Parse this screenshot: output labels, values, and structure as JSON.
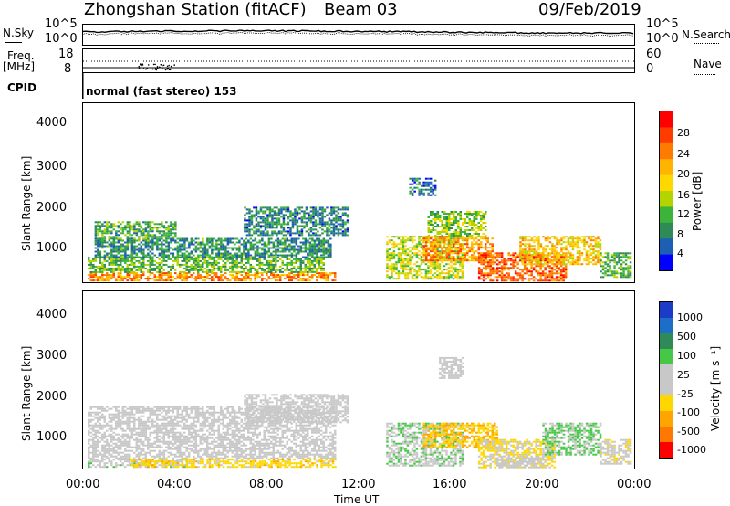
{
  "header": {
    "title": "Zhongshan Station (fitACF)",
    "beam": "Beam 03",
    "date": "09/Feb/2019"
  },
  "noise_panel": {
    "left_label": "N.Sky",
    "right_label": "N.Search",
    "left_ticks": [
      "10^5",
      "10^0"
    ],
    "right_ticks": [
      "10^5",
      "10^0"
    ]
  },
  "freq_panel": {
    "left_label": "Freq.",
    "left_unit": "[MHz]",
    "right_label": "Nave",
    "left_ticks": [
      "18",
      "8"
    ],
    "right_ticks": [
      "60",
      "0"
    ]
  },
  "cpid": {
    "label": "CPID",
    "mode": "normal (fast stereo) 153"
  },
  "x_axis": {
    "ticks": [
      "00:00",
      "04:00",
      "08:00",
      "12:00",
      "16:00",
      "20:00",
      "00:00"
    ],
    "label": "Time UT"
  },
  "power_panel": {
    "ylabel": "Slant Range [km]",
    "yticks": [
      "4000",
      "3000",
      "2000",
      "1000"
    ],
    "colorbar_label": "Power [dB]",
    "colorbar_ticks": [
      "28",
      "24",
      "20",
      "16",
      "12",
      "8",
      "4"
    ],
    "colorbar_colors": [
      "#ff0000",
      "#ff3c00",
      "#ff7a00",
      "#ffb400",
      "#ffd800",
      "#b4d400",
      "#3cb43c",
      "#2e8b57",
      "#1c5fb4",
      "#0000ff"
    ]
  },
  "velocity_panel": {
    "ylabel": "Slant Range [km]",
    "yticks": [
      "4000",
      "3000",
      "2000",
      "1000"
    ],
    "colorbar_label": "Velocity [m s⁻¹]",
    "colorbar_ticks": [
      "1000",
      "500",
      "100",
      "25",
      "-25",
      "-100",
      "-500",
      "-1000"
    ],
    "colorbar_colors": [
      "#1c3cc8",
      "#1c6ec8",
      "#2e8b57",
      "#46c846",
      "#c8c8c8",
      "#c8c8c8",
      "#ffd700",
      "#ffa500",
      "#ff7800",
      "#ff0000"
    ]
  },
  "chart_data": {
    "type": "heatmap",
    "x_range_hours": [
      0,
      24
    ],
    "y_range_km": [
      180,
      4500
    ],
    "power_db_range": [
      0,
      30
    ],
    "velocity_range": [
      -1200,
      1200
    ],
    "power_regions": [
      {
        "t0": 0.2,
        "t1": 11.0,
        "r0": 220,
        "r1": 420,
        "power": 22
      },
      {
        "t0": 0.2,
        "t1": 10.5,
        "r0": 420,
        "r1": 800,
        "power": 10
      },
      {
        "t0": 0.5,
        "t1": 10.8,
        "r0": 800,
        "r1": 1250,
        "power": 7
      },
      {
        "t0": 0.5,
        "t1": 4.0,
        "r0": 1250,
        "r1": 1650,
        "power": 9
      },
      {
        "t0": 7.0,
        "t1": 11.5,
        "r0": 1300,
        "r1": 2000,
        "power": 6
      },
      {
        "t0": 13.2,
        "t1": 16.5,
        "r0": 250,
        "r1": 1300,
        "power": 14
      },
      {
        "t0": 14.8,
        "t1": 17.8,
        "r0": 700,
        "r1": 1300,
        "power": 22
      },
      {
        "t0": 15.0,
        "t1": 17.5,
        "r0": 1300,
        "r1": 1900,
        "power": 12
      },
      {
        "t0": 17.2,
        "t1": 21.0,
        "r0": 230,
        "r1": 900,
        "power": 25
      },
      {
        "t0": 19.0,
        "t1": 22.5,
        "r0": 600,
        "r1": 1300,
        "power": 18
      },
      {
        "t0": 22.5,
        "t1": 23.8,
        "r0": 300,
        "r1": 900,
        "power": 10
      },
      {
        "t0": 14.2,
        "t1": 15.3,
        "r0": 2300,
        "r1": 2700,
        "power": 5
      }
    ],
    "velocity_regions": [
      {
        "t0": 0.2,
        "t1": 4.5,
        "r0": 200,
        "r1": 420,
        "velocity": 150
      },
      {
        "t0": 2.0,
        "t1": 11.0,
        "r0": 220,
        "r1": 420,
        "velocity": -400
      },
      {
        "t0": 0.2,
        "t1": 11.0,
        "r0": 420,
        "r1": 1700,
        "velocity": 0
      },
      {
        "t0": 7.0,
        "t1": 11.5,
        "r0": 1300,
        "r1": 2000,
        "velocity": 0
      },
      {
        "t0": 13.2,
        "t1": 16.5,
        "r0": 250,
        "r1": 1300,
        "velocity": 200
      },
      {
        "t0": 14.8,
        "t1": 18.0,
        "r0": 700,
        "r1": 1300,
        "velocity": -500
      },
      {
        "t0": 17.2,
        "t1": 20.5,
        "r0": 230,
        "r1": 900,
        "velocity": -300
      },
      {
        "t0": 18.0,
        "t1": 20.0,
        "r0": 230,
        "r1": 500,
        "velocity": 0
      },
      {
        "t0": 20.0,
        "t1": 22.5,
        "r0": 500,
        "r1": 1300,
        "velocity": 300
      },
      {
        "t0": 22.5,
        "t1": 23.8,
        "r0": 300,
        "r1": 900,
        "velocity": -150
      },
      {
        "t0": 15.5,
        "t1": 16.5,
        "r0": 2400,
        "r1": 2900,
        "velocity": 0
      }
    ]
  }
}
